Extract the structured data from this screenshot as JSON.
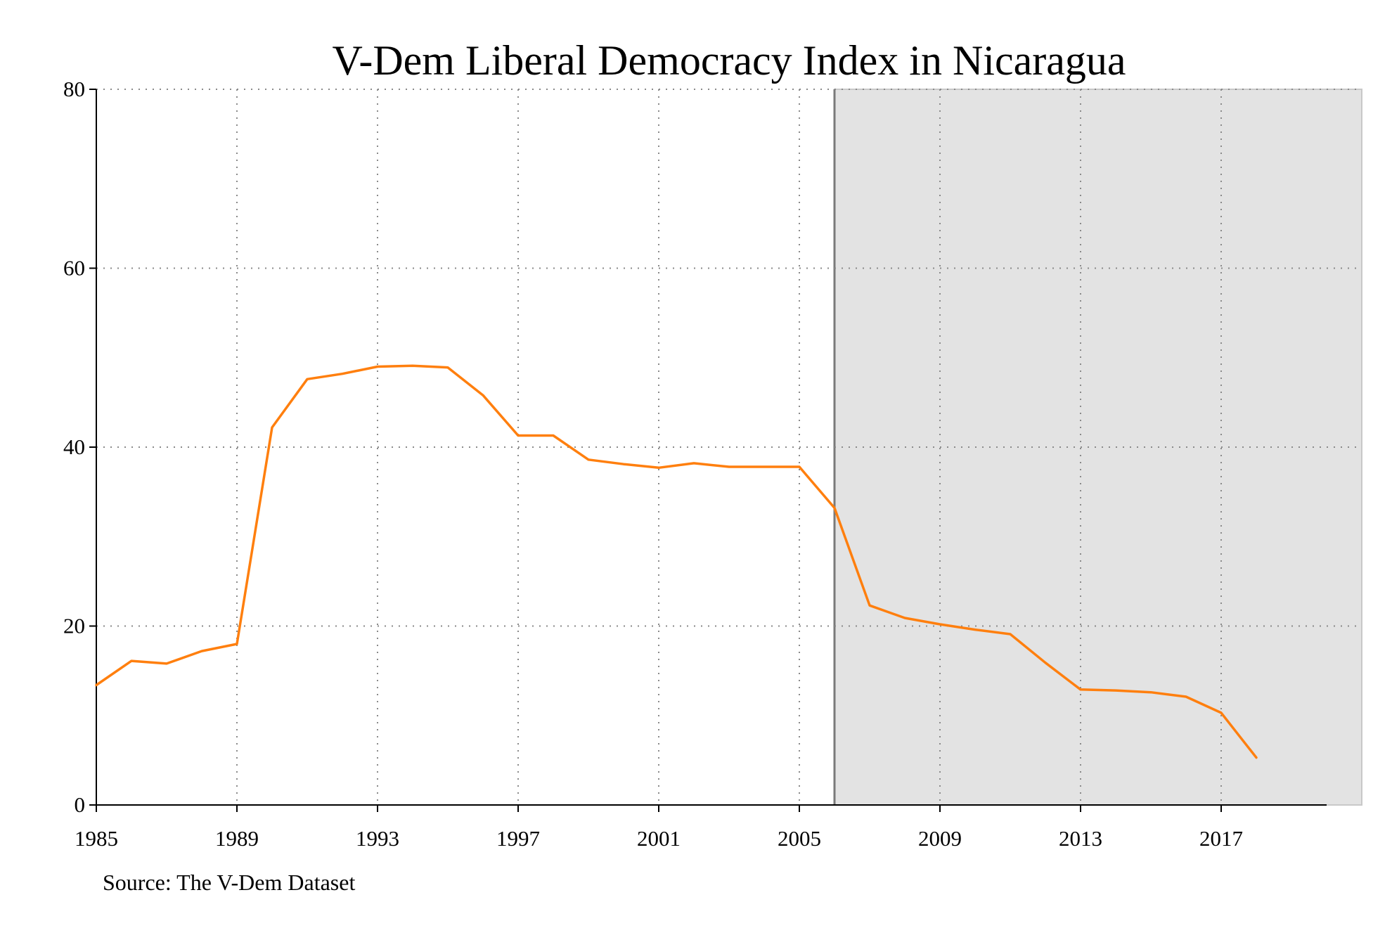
{
  "chart_data": {
    "type": "line",
    "title": "V-Dem Liberal Democracy Index in Nicaragua",
    "source": "Source: The V-Dem Dataset",
    "xlabel": "",
    "ylabel": "",
    "xlim": [
      1985,
      2021
    ],
    "ylim": [
      0,
      80
    ],
    "x_ticks": [
      1985,
      1989,
      1993,
      1997,
      2001,
      2005,
      2009,
      2013,
      2017
    ],
    "y_ticks": [
      0,
      20,
      40,
      60,
      80
    ],
    "grid": true,
    "shaded_region": {
      "x_start": 2006,
      "x_end": 2021,
      "color": "#e3e3e3"
    },
    "line_color": "#ff7f0e",
    "series": [
      {
        "x": [
          1985,
          1986,
          1987,
          1988,
          1989,
          1990,
          1991,
          1992,
          1993,
          1994,
          1995,
          1996,
          1997,
          1998,
          1999,
          2000,
          2001,
          2002,
          2003,
          2004,
          2005,
          2006,
          2007,
          2008,
          2009,
          2010,
          2011,
          2012,
          2013,
          2014,
          2015,
          2016,
          2017,
          2018
        ],
        "values": [
          13.4,
          16.1,
          15.8,
          17.2,
          18.0,
          42.2,
          47.6,
          48.2,
          49.0,
          49.1,
          48.9,
          45.8,
          41.3,
          41.3,
          38.6,
          38.1,
          37.7,
          38.2,
          37.8,
          37.8,
          37.8,
          33.2,
          22.3,
          20.9,
          20.2,
          19.6,
          19.1,
          15.9,
          12.9,
          12.8,
          12.6,
          12.1,
          10.3,
          5.3
        ]
      }
    ]
  }
}
